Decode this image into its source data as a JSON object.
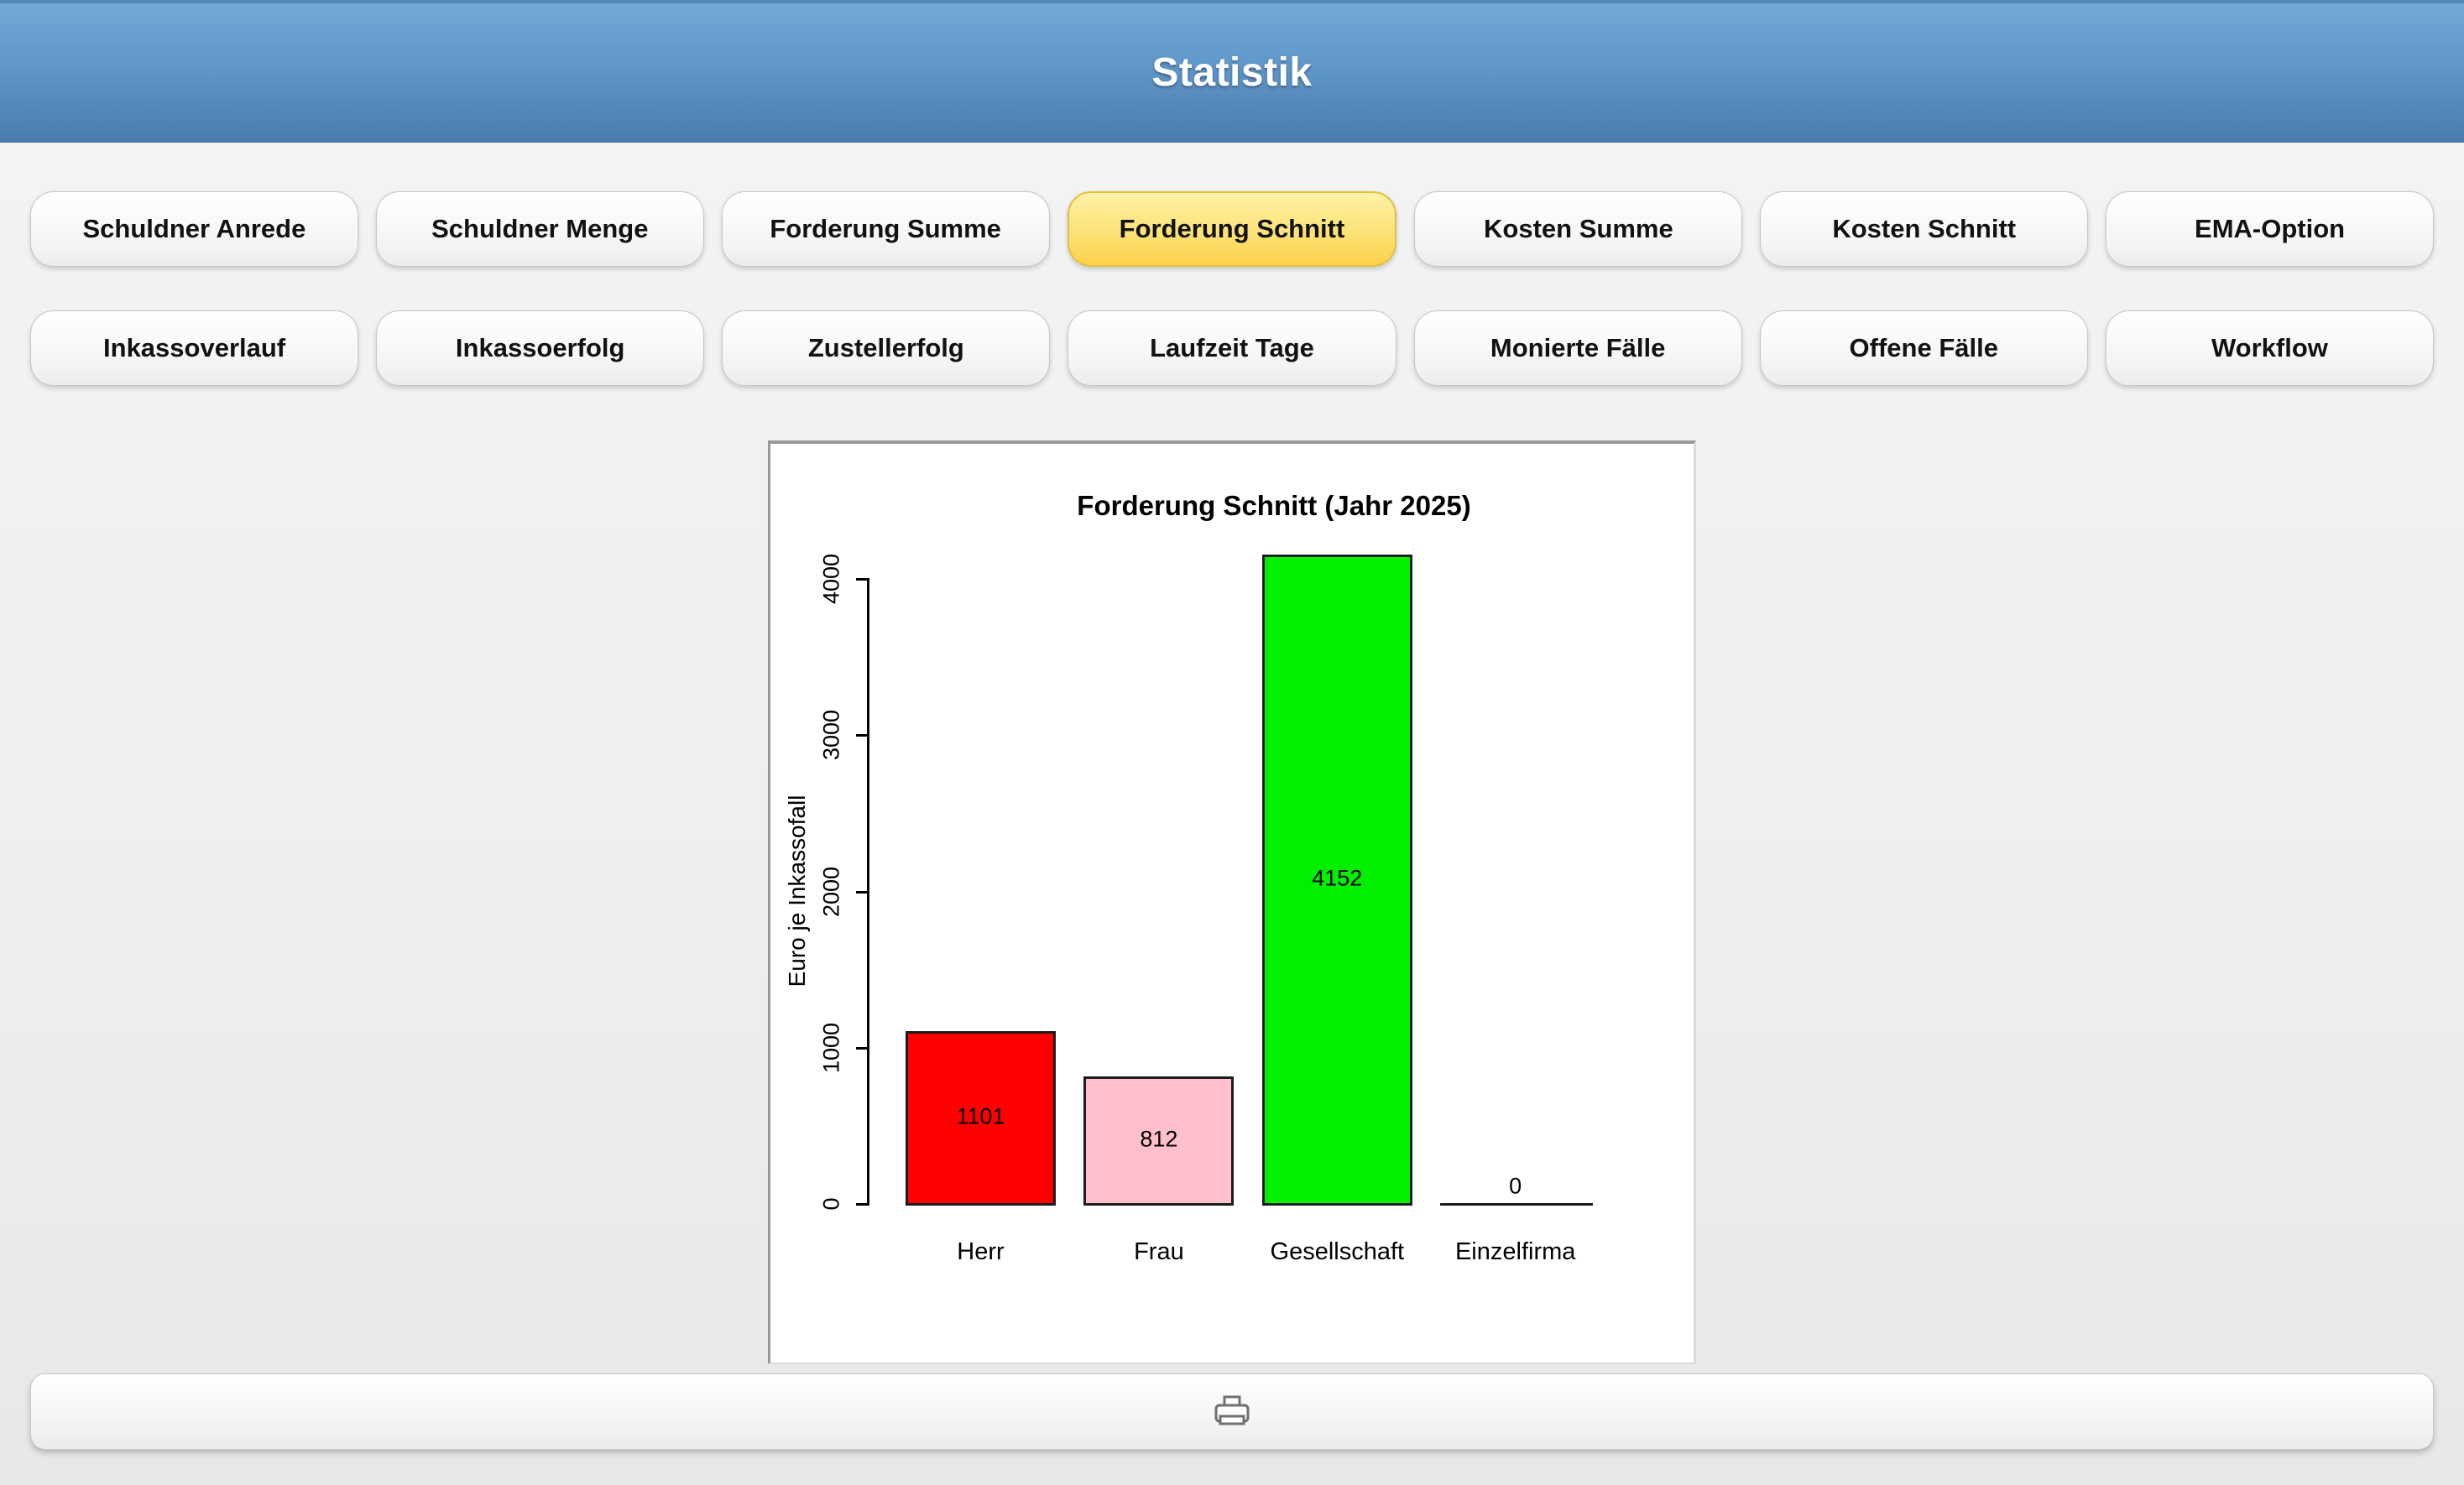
{
  "header": {
    "title": "Statistik"
  },
  "nav": {
    "rows": [
      {
        "items": [
          {
            "label": "Schuldner Anrede",
            "active": false
          },
          {
            "label": "Schuldner Menge",
            "active": false
          },
          {
            "label": "Forderung Summe",
            "active": false
          },
          {
            "label": "Forderung Schnitt",
            "active": true
          },
          {
            "label": "Kosten Summe",
            "active": false
          },
          {
            "label": "Kosten Schnitt",
            "active": false
          },
          {
            "label": "EMA-Option",
            "active": false
          }
        ]
      },
      {
        "items": [
          {
            "label": "Inkassoverlauf",
            "active": false
          },
          {
            "label": "Inkassoerfolg",
            "active": false
          },
          {
            "label": "Zustellerfolg",
            "active": false
          },
          {
            "label": "Laufzeit Tage",
            "active": false
          },
          {
            "label": "Monierte Fälle",
            "active": false
          },
          {
            "label": "Offene Fälle",
            "active": false
          },
          {
            "label": "Workflow",
            "active": false
          }
        ]
      }
    ]
  },
  "chart_data": {
    "type": "bar",
    "title": "Forderung Schnitt (Jahr 2025)",
    "categories": [
      "Herr",
      "Frau",
      "Gesellschaft",
      "Einzelfirma"
    ],
    "values": [
      1101,
      812,
      4152,
      0
    ],
    "bar_colors": [
      "#ff0000",
      "#ffc0cb",
      "#00f000",
      "#1c1c1c"
    ],
    "xlabel": "",
    "ylabel": "Euro je Inkassofall",
    "ylim": [
      0,
      4000
    ],
    "yticks": [
      0,
      1000,
      2000,
      3000,
      4000
    ],
    "grid": false,
    "legend": null
  },
  "colors": {
    "header_top": "#73a9d6",
    "header_bottom": "#4a7cb0",
    "active_tab_top": "#fdf2a6",
    "active_tab_bottom": "#fcd24b",
    "page_background": "#efefef"
  },
  "footer": {
    "print_icon": "printer-icon"
  }
}
